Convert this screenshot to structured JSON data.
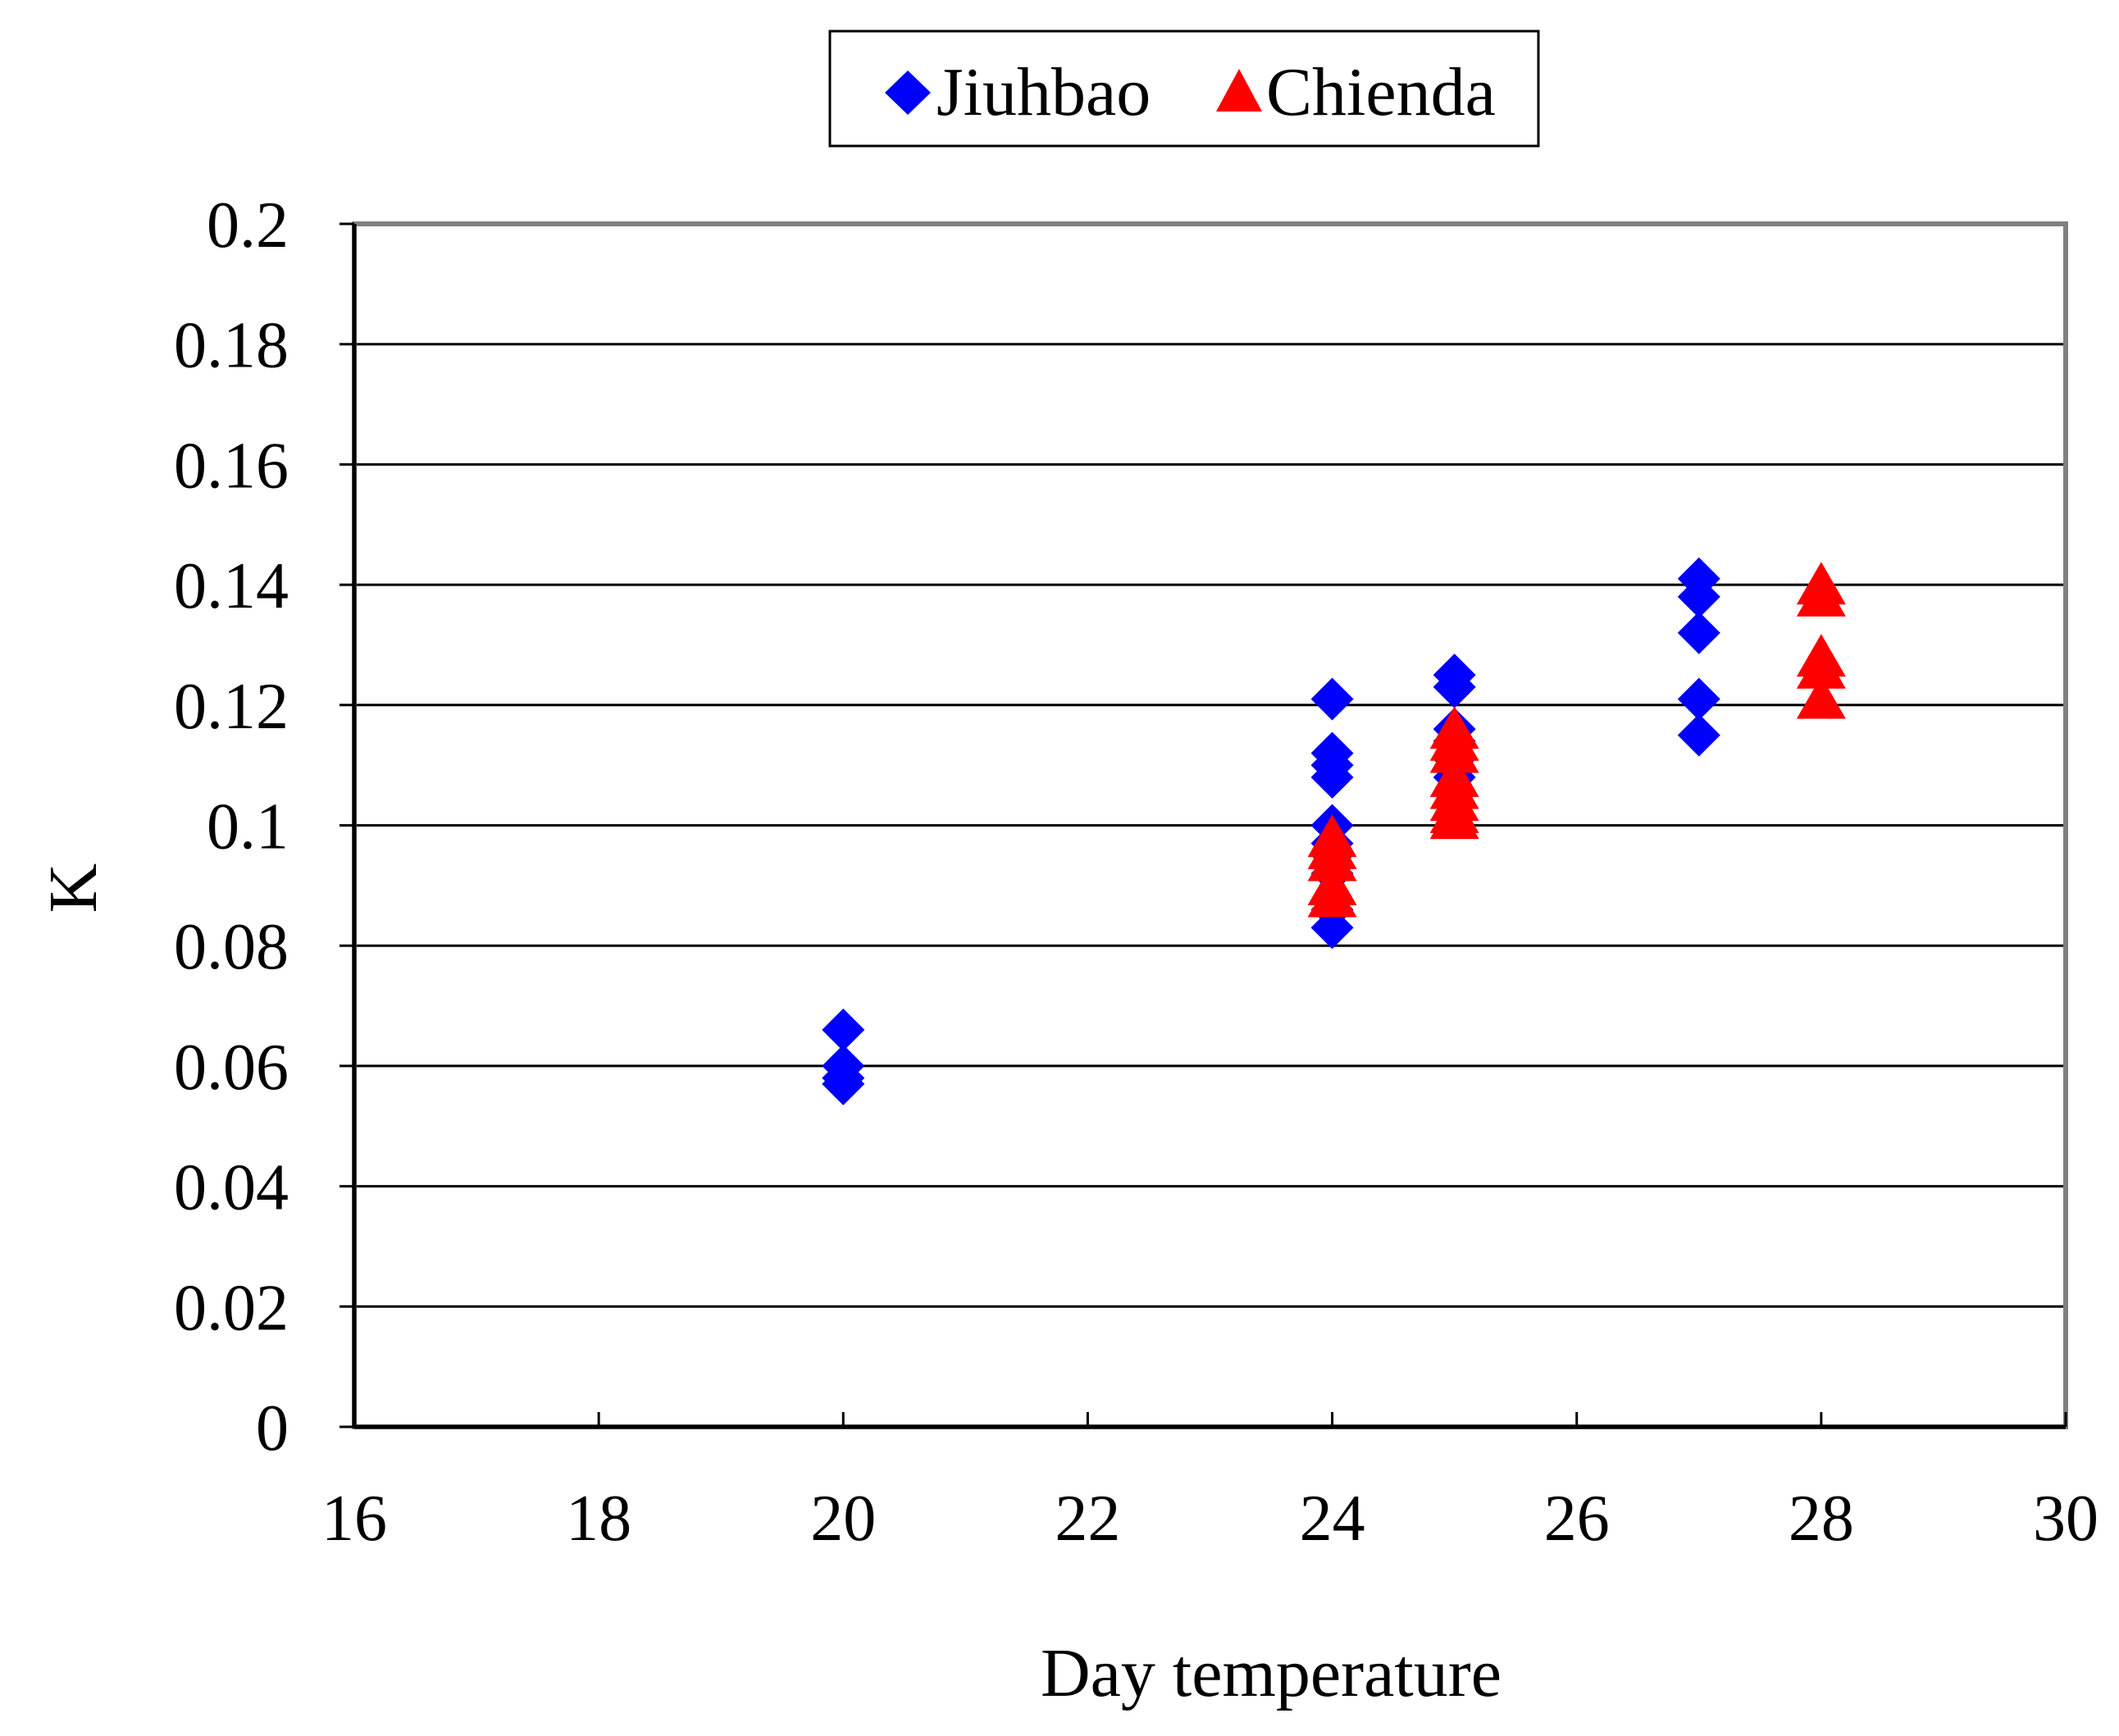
{
  "chart_data": {
    "type": "scatter",
    "title": "",
    "xlabel": "Day temperature",
    "ylabel": "K",
    "xlim": [
      16,
      30
    ],
    "ylim": [
      0,
      0.2
    ],
    "xticks": [
      16,
      18,
      20,
      22,
      24,
      26,
      28,
      30
    ],
    "yticks": [
      0,
      0.02,
      0.04,
      0.06,
      0.08,
      0.1,
      0.12,
      0.14,
      0.16,
      0.18,
      0.2
    ],
    "ytick_labels": [
      "0",
      "0.02",
      "0.04",
      "0.06",
      "0.08",
      "0.1",
      "0.12",
      "0.14",
      "0.16",
      "0.18",
      "0.2"
    ],
    "grid": "horizontal",
    "legend_position": "top-center",
    "series": [
      {
        "name": "Jiuhbao",
        "marker": "diamond",
        "color": "#0000FF",
        "points": [
          {
            "x": 20,
            "y": 0.066
          },
          {
            "x": 20,
            "y": 0.06
          },
          {
            "x": 20,
            "y": 0.058
          },
          {
            "x": 20,
            "y": 0.057
          },
          {
            "x": 24,
            "y": 0.121
          },
          {
            "x": 24,
            "y": 0.112
          },
          {
            "x": 24,
            "y": 0.11
          },
          {
            "x": 24,
            "y": 0.108
          },
          {
            "x": 24,
            "y": 0.1
          },
          {
            "x": 24,
            "y": 0.097
          },
          {
            "x": 24,
            "y": 0.095
          },
          {
            "x": 24,
            "y": 0.092
          },
          {
            "x": 24,
            "y": 0.086
          },
          {
            "x": 24,
            "y": 0.083
          },
          {
            "x": 25,
            "y": 0.125
          },
          {
            "x": 25,
            "y": 0.123
          },
          {
            "x": 25,
            "y": 0.116
          },
          {
            "x": 25,
            "y": 0.114
          },
          {
            "x": 25,
            "y": 0.111
          },
          {
            "x": 25,
            "y": 0.108
          },
          {
            "x": 27,
            "y": 0.141
          },
          {
            "x": 27,
            "y": 0.138
          },
          {
            "x": 27,
            "y": 0.132
          },
          {
            "x": 27,
            "y": 0.121
          },
          {
            "x": 27,
            "y": 0.115
          }
        ]
      },
      {
        "name": "Chienda",
        "marker": "triangle",
        "color": "#FF0000",
        "points": [
          {
            "x": 24,
            "y": 0.098
          },
          {
            "x": 24,
            "y": 0.096
          },
          {
            "x": 24,
            "y": 0.094
          },
          {
            "x": 24,
            "y": 0.09
          },
          {
            "x": 24,
            "y": 0.088
          },
          {
            "x": 25,
            "y": 0.116
          },
          {
            "x": 25,
            "y": 0.114
          },
          {
            "x": 25,
            "y": 0.112
          },
          {
            "x": 25,
            "y": 0.108
          },
          {
            "x": 25,
            "y": 0.106
          },
          {
            "x": 25,
            "y": 0.104
          },
          {
            "x": 25,
            "y": 0.102
          },
          {
            "x": 25,
            "y": 0.101
          },
          {
            "x": 28,
            "y": 0.14
          },
          {
            "x": 28,
            "y": 0.138
          },
          {
            "x": 28,
            "y": 0.128
          },
          {
            "x": 28,
            "y": 0.126
          },
          {
            "x": 28,
            "y": 0.121
          }
        ]
      }
    ]
  }
}
